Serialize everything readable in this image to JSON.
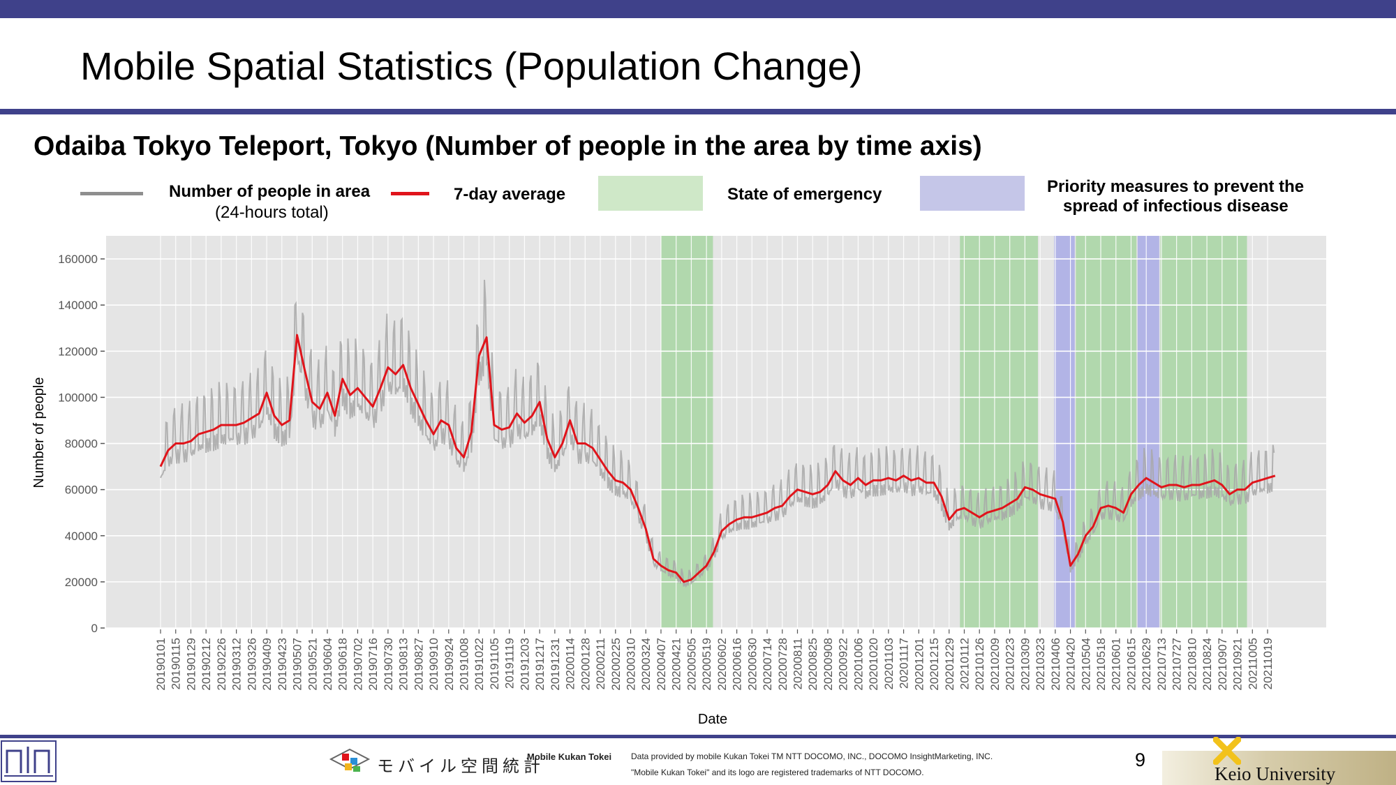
{
  "slide": {
    "title": "Mobile Spatial Statistics (Population Change)",
    "page_number": "9"
  },
  "legend": {
    "raw_label_line1": "Number of people in area",
    "raw_label_line2": "(24-hours total)",
    "avg_label": "7-day average",
    "emergency_label": "State of emergency",
    "priority_label_line1": "Priority measures to prevent the",
    "priority_label_line2": "spread of infectious disease"
  },
  "colors": {
    "header_bar": "#3f418a",
    "raw_line": "#a8a8a8",
    "avg_line": "#e0141b",
    "emergency": "#9fd39a",
    "priority": "#a9abe6",
    "plot_bg": "#e5e5e5"
  },
  "footer": {
    "brand_jp": "モバイル空間統計",
    "brand_en": "Mobile Kukan Tokei",
    "credit_line1": "Data provided by mobile Kukan Tokei TM NTT DOCOMO, INC., DOCOMO InsightMarketing, INC.",
    "credit_line2": "\"Mobile Kukan Tokei\" and its logo are registered trademarks of NTT DOCOMO.",
    "university": "Keio University"
  },
  "chart_data": {
    "type": "line",
    "title": "Odaiba Tokyo Teleport, Tokyo (Number of people in the area by time axis)",
    "xlabel": "Date",
    "ylabel": "Number of people",
    "ylim": [
      0,
      170000
    ],
    "yticks": [
      0,
      20000,
      40000,
      60000,
      80000,
      100000,
      120000,
      140000,
      160000
    ],
    "grid": true,
    "legend_position": "top",
    "xticks": [
      "20190101",
      "20190115",
      "20190129",
      "20190212",
      "20190226",
      "20190312",
      "20190326",
      "20190409",
      "20190423",
      "20190507",
      "20190521",
      "20190604",
      "20190618",
      "20190702",
      "20190716",
      "20190730",
      "20190813",
      "20190827",
      "20190910",
      "20190924",
      "20191008",
      "20191022",
      "20191105",
      "20191119",
      "20191203",
      "20191217",
      "20191231",
      "20200114",
      "20200128",
      "20200211",
      "20200225",
      "20200310",
      "20200324",
      "20200407",
      "20200421",
      "20200505",
      "20200519",
      "20200602",
      "20200616",
      "20200630",
      "20200714",
      "20200728",
      "20200811",
      "20200825",
      "20200908",
      "20200922",
      "20201006",
      "20201020",
      "20201103",
      "20201117",
      "20201201",
      "20201215",
      "20201229",
      "20210112",
      "20210126",
      "20210209",
      "20210223",
      "20210309",
      "20210323",
      "20210406",
      "20210420",
      "20210504",
      "20210518",
      "20210601",
      "20210615",
      "20210629",
      "20210713",
      "20210727",
      "20210810",
      "20210824",
      "20210907",
      "20210921",
      "20211005",
      "20211019"
    ],
    "shaded_periods": [
      {
        "type": "emergency",
        "start": "20200407",
        "end": "20200525"
      },
      {
        "type": "emergency",
        "start": "20210108",
        "end": "20210321"
      },
      {
        "type": "priority",
        "start": "20210405",
        "end": "20210424"
      },
      {
        "type": "emergency",
        "start": "20210425",
        "end": "20210620"
      },
      {
        "type": "priority",
        "start": "20210621",
        "end": "20210711"
      },
      {
        "type": "emergency",
        "start": "20210712",
        "end": "20210930"
      }
    ],
    "series": [
      {
        "name": "7-day average",
        "dates": [
          "20190101",
          "20190108",
          "20190115",
          "20190122",
          "20190129",
          "20190205",
          "20190212",
          "20190219",
          "20190226",
          "20190305",
          "20190312",
          "20190319",
          "20190326",
          "20190402",
          "20190409",
          "20190416",
          "20190423",
          "20190430",
          "20190507",
          "20190514",
          "20190521",
          "20190528",
          "20190604",
          "20190611",
          "20190618",
          "20190625",
          "20190702",
          "20190709",
          "20190716",
          "20190723",
          "20190730",
          "20190806",
          "20190813",
          "20190820",
          "20190827",
          "20190903",
          "20190910",
          "20190917",
          "20190924",
          "20191001",
          "20191008",
          "20191015",
          "20191022",
          "20191029",
          "20191105",
          "20191112",
          "20191119",
          "20191126",
          "20191203",
          "20191210",
          "20191217",
          "20191224",
          "20191231",
          "20200107",
          "20200114",
          "20200121",
          "20200128",
          "20200204",
          "20200211",
          "20200218",
          "20200225",
          "20200303",
          "20200310",
          "20200317",
          "20200324",
          "20200331",
          "20200407",
          "20200414",
          "20200421",
          "20200428",
          "20200505",
          "20200512",
          "20200519",
          "20200526",
          "20200602",
          "20200609",
          "20200616",
          "20200623",
          "20200630",
          "20200707",
          "20200714",
          "20200721",
          "20200728",
          "20200804",
          "20200811",
          "20200818",
          "20200825",
          "20200901",
          "20200908",
          "20200915",
          "20200922",
          "20200929",
          "20201006",
          "20201013",
          "20201020",
          "20201027",
          "20201103",
          "20201110",
          "20201117",
          "20201124",
          "20201201",
          "20201208",
          "20201215",
          "20201222",
          "20201229",
          "20210105",
          "20210112",
          "20210119",
          "20210126",
          "20210202",
          "20210209",
          "20210216",
          "20210223",
          "20210302",
          "20210309",
          "20210316",
          "20210323",
          "20210330",
          "20210406",
          "20210413",
          "20210420",
          "20210427",
          "20210504",
          "20210511",
          "20210518",
          "20210525",
          "20210601",
          "20210608",
          "20210615",
          "20210622",
          "20210629",
          "20210706",
          "20210713",
          "20210720",
          "20210727",
          "20210803",
          "20210810",
          "20210817",
          "20210824",
          "20210831",
          "20210907",
          "20210914",
          "20210921",
          "20210928",
          "20211005",
          "20211012",
          "20211019",
          "20211026"
        ],
        "values": [
          70000,
          77000,
          80000,
          80000,
          81000,
          84000,
          85000,
          86000,
          88000,
          88000,
          88000,
          89000,
          91000,
          93000,
          102000,
          92000,
          88000,
          90000,
          127000,
          112000,
          98000,
          95000,
          102000,
          92000,
          108000,
          101000,
          104000,
          100000,
          96000,
          104000,
          113000,
          110000,
          114000,
          104000,
          97000,
          90000,
          84000,
          90000,
          88000,
          78000,
          74000,
          85000,
          118000,
          126000,
          88000,
          86000,
          87000,
          93000,
          89000,
          92000,
          98000,
          82000,
          74000,
          80000,
          90000,
          80000,
          80000,
          78000,
          73000,
          68000,
          64000,
          63000,
          60000,
          52000,
          43000,
          30000,
          27000,
          25000,
          24000,
          20000,
          21000,
          24000,
          27000,
          33000,
          42000,
          45000,
          47000,
          48000,
          48000,
          49000,
          50000,
          52000,
          53000,
          57000,
          60000,
          59000,
          58000,
          59000,
          62000,
          68000,
          64000,
          62000,
          65000,
          62000,
          64000,
          64000,
          65000,
          64000,
          66000,
          64000,
          65000,
          63000,
          63000,
          57000,
          47000,
          51000,
          52000,
          50000,
          48000,
          50000,
          51000,
          52000,
          54000,
          56000,
          61000,
          60000,
          58000,
          57000,
          56000,
          46000,
          27000,
          32000,
          40000,
          44000,
          52000,
          53000,
          52000,
          50000,
          58000,
          62000,
          65000,
          63000,
          61000,
          62000,
          62000,
          61000,
          62000,
          62000,
          63000,
          64000,
          62000,
          58000,
          60000,
          60000,
          63000,
          64000,
          65000,
          66000
        ]
      }
    ]
  }
}
